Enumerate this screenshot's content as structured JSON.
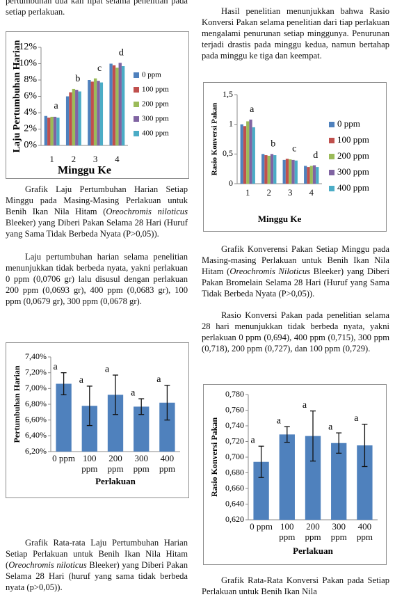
{
  "top_text": "pertumbuhan dua kali lipat selama penelitian pada setiap perlakuan.",
  "left_caption_1": [
    "Grafik Laju Pertumbuhan Harian Setiap Minggu pada Masing-Masing Perlakuan untuk Benih Ikan Nila Hitam (",
    "Oreochromis niloticus",
    " Bleeker) yang Diberi Pakan Selama 28 Hari (Huruf yang Sama Tidak Berbeda Nyata (P>0,05))."
  ],
  "left_paragraph": "Laju pertumbuhan harian selama penelitian menunjukkan tidak berbeda nyata, yakni perlakuan 0 ppm (0,0706 gr) lalu disusul dengan perlakuan 200 ppm (0,0693 gr), 400 ppm (0,0683 gr), 100 ppm (0,0679 gr), 300 ppm (0,0678 gr).",
  "left_caption_2": [
    "Grafik Rata-rata Laju Pertumbuhan Harian Setiap Perlakuan untuk Benih Ikan Nila Hitam (",
    "Oreochromis niloticus",
    " Bleeker) yang Diberi Pakan Selama 28 Hari (huruf yang sama tidak berbeda nyata (p>0,05))."
  ],
  "right_paragraph_1": "Hasil penelitian menunjukkan bahwa Rasio Konversi Pakan selama penelitian dari tiap perlakuan mengalami penurunan setiap minggunya. Penurunan terjadi drastis pada minggu kedua, namun bertahap pada minggu ke tiga dan keempat.",
  "right_caption_1": [
    "Grafik Konverensi Pakan Setiap Minggu pada Masing-masing Perlakuan untuk Benih Ikan Nila Hitam (",
    "Oreochromis Niloticus",
    " Bleeker) yang Diberi Pakan Bromelain Selama 28 Hari (Huruf yang Sama Tidak Berbeda Nyata (P>0,05))."
  ],
  "right_paragraph_2": "Rasio Konversi Pakan pada penelitian selama 28 hari menunjukkan tidak berbeda nyata, yakni perlakuan 0 ppm (0,694), 400 ppm (0,715), 300 ppm (0,718), 200 ppm (0,727), dan 100 ppm (0,729).",
  "right_caption_2": [
    "Grafik Rata-Rata Konversi Pakan pada Setiap Perlakuan untuk Benih Ikan Nila"
  ],
  "chart_data": [
    {
      "type": "bar",
      "y_label": "Laju Pertumbuhan Harian",
      "x_label": "Minggu Ke",
      "categories": [
        "1",
        "2",
        "3",
        "4"
      ],
      "annotations": [
        "a",
        "b",
        "c",
        "d"
      ],
      "series": [
        {
          "name": "0 ppm",
          "color": "#4f81bd",
          "values": [
            3.6,
            6.0,
            8.0,
            10.0
          ]
        },
        {
          "name": "100 ppm",
          "color": "#c0504d",
          "values": [
            3.4,
            6.5,
            7.8,
            9.8
          ]
        },
        {
          "name": "200 ppm",
          "color": "#9bbb59",
          "values": [
            3.5,
            6.9,
            8.2,
            9.5
          ]
        },
        {
          "name": "300 ppm",
          "color": "#8064a2",
          "values": [
            3.5,
            6.8,
            7.9,
            10.1
          ]
        },
        {
          "name": "400 ppm",
          "color": "#4bacc6",
          "values": [
            3.4,
            6.6,
            7.7,
            9.7
          ]
        }
      ],
      "ylim": [
        0,
        12
      ],
      "yticks": [
        {
          "value": 0,
          "label": "0%"
        },
        {
          "value": 2,
          "label": "2%"
        },
        {
          "value": 4,
          "label": "4%"
        },
        {
          "value": 6,
          "label": "6%"
        },
        {
          "value": 8,
          "label": "8%"
        },
        {
          "value": 10,
          "label": "10%"
        },
        {
          "value": 12,
          "label": "12%"
        }
      ],
      "grid": false,
      "legend": "right"
    },
    {
      "type": "bar",
      "y_label": "Rasio Konversi Pakan",
      "x_label": "Minggu Ke",
      "categories": [
        "1",
        "2",
        "3",
        "4"
      ],
      "annotations": [
        "a",
        "b",
        "c",
        "d"
      ],
      "series": [
        {
          "name": "0 ppm",
          "color": "#4f81bd",
          "values": [
            1.0,
            0.5,
            0.4,
            0.3
          ]
        },
        {
          "name": "100 ppm",
          "color": "#c0504d",
          "values": [
            0.97,
            0.48,
            0.42,
            0.28
          ]
        },
        {
          "name": "200 ppm",
          "color": "#9bbb59",
          "values": [
            1.05,
            0.47,
            0.41,
            0.3
          ]
        },
        {
          "name": "300 ppm",
          "color": "#8064a2",
          "values": [
            1.08,
            0.5,
            0.4,
            0.31
          ]
        },
        {
          "name": "400 ppm",
          "color": "#4bacc6",
          "values": [
            0.95,
            0.48,
            0.39,
            0.28
          ]
        }
      ],
      "ylim": [
        0,
        1.5
      ],
      "yticks": [
        0,
        {
          "value": 0.5,
          "label": "0,5"
        },
        1,
        {
          "value": 1.5,
          "label": "1,5"
        }
      ],
      "grid": false,
      "legend": "right"
    },
    {
      "type": "bar",
      "y_label": "Pertumbuhan Harian",
      "x_label": "Perlakuan",
      "categories": [
        "0 ppm",
        "100 ppm",
        "200 ppm",
        "300 ppm",
        "400 ppm"
      ],
      "annotations": [
        "a",
        "a",
        "a",
        "a",
        "a"
      ],
      "values": [
        7.06,
        6.78,
        6.92,
        6.77,
        6.82
      ],
      "errors": [
        0.14,
        0.25,
        0.25,
        0.1,
        0.22
      ],
      "color": "#4f81bd",
      "ylim": [
        6.2,
        7.4
      ],
      "yticks": [
        {
          "value": 6.2,
          "label": "6,20%"
        },
        {
          "value": 6.4,
          "label": "6,40%"
        },
        {
          "value": 6.6,
          "label": "6,60%"
        },
        {
          "value": 6.8,
          "label": "6,80%"
        },
        {
          "value": 7.0,
          "label": "7,00%"
        },
        {
          "value": 7.2,
          "label": "7,20%"
        },
        {
          "value": 7.4,
          "label": "7,40%"
        }
      ],
      "grid": false
    },
    {
      "type": "bar",
      "y_label": "Rasio Konversi Pakan",
      "x_label": "Perlakuan",
      "categories": [
        "0 ppm",
        "100 ppm",
        "200 ppm",
        "300 ppm",
        "400 ppm"
      ],
      "annotations": [
        "a",
        "a",
        "a",
        "a",
        "a"
      ],
      "values": [
        0.694,
        0.729,
        0.727,
        0.718,
        0.715
      ],
      "errors": [
        0.02,
        0.01,
        0.032,
        0.013,
        0.027
      ],
      "color": "#4f81bd",
      "ylim": [
        0.62,
        0.78
      ],
      "yticks": [
        {
          "value": 0.62,
          "label": "0,620"
        },
        {
          "value": 0.64,
          "label": "0,640"
        },
        {
          "value": 0.66,
          "label": "0,660"
        },
        {
          "value": 0.68,
          "label": "0,680"
        },
        {
          "value": 0.7,
          "label": "0,700"
        },
        {
          "value": 0.72,
          "label": "0,720"
        },
        {
          "value": 0.74,
          "label": "0,740"
        },
        {
          "value": 0.76,
          "label": "0,760"
        },
        {
          "value": 0.78,
          "label": "0,780"
        }
      ],
      "grid": false
    }
  ]
}
